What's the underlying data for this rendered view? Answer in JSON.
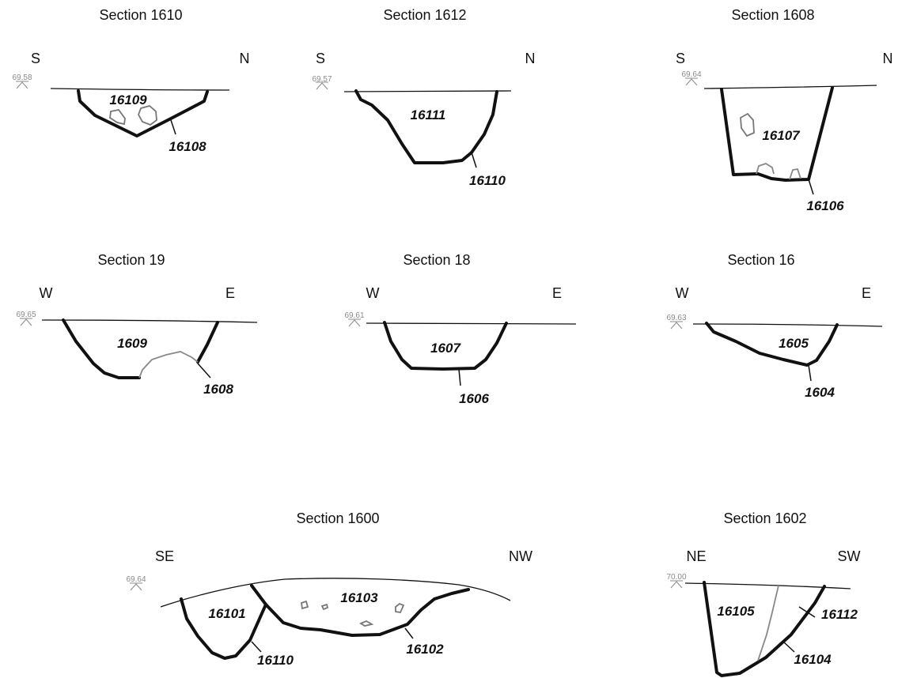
{
  "sections": [
    {
      "id": "s1610",
      "title": "Section 1610",
      "orientation": {
        "left": "S",
        "right": "N"
      },
      "datum": "69.58",
      "contexts": [
        "16109",
        "16108"
      ]
    },
    {
      "id": "s1612",
      "title": "Section 1612",
      "orientation": {
        "left": "S",
        "right": "N"
      },
      "datum": "69.57",
      "contexts": [
        "16111",
        "16110"
      ]
    },
    {
      "id": "s1608",
      "title": "Section 1608",
      "orientation": {
        "left": "S",
        "right": "N"
      },
      "datum": "69.64",
      "contexts": [
        "16107",
        "16106"
      ]
    },
    {
      "id": "s19",
      "title": "Section 19",
      "orientation": {
        "left": "W",
        "right": "E"
      },
      "datum": "69.65",
      "contexts": [
        "1609",
        "1608"
      ]
    },
    {
      "id": "s18",
      "title": "Section 18",
      "orientation": {
        "left": "W",
        "right": "E"
      },
      "datum": "69.61",
      "contexts": [
        "1607",
        "1606"
      ]
    },
    {
      "id": "s16",
      "title": "Section 16",
      "orientation": {
        "left": "W",
        "right": "E"
      },
      "datum": "69.63",
      "contexts": [
        "1605",
        "1604"
      ]
    },
    {
      "id": "s1600",
      "title": "Section 1600",
      "orientation": {
        "left": "SE",
        "right": "NW"
      },
      "datum": "69.64",
      "contexts": [
        "16101",
        "16103",
        "16110",
        "16102"
      ]
    },
    {
      "id": "s1602",
      "title": "Section 1602",
      "orientation": {
        "left": "NE",
        "right": "SW"
      },
      "datum": "70.00",
      "contexts": [
        "16105",
        "16112",
        "16104"
      ]
    }
  ]
}
